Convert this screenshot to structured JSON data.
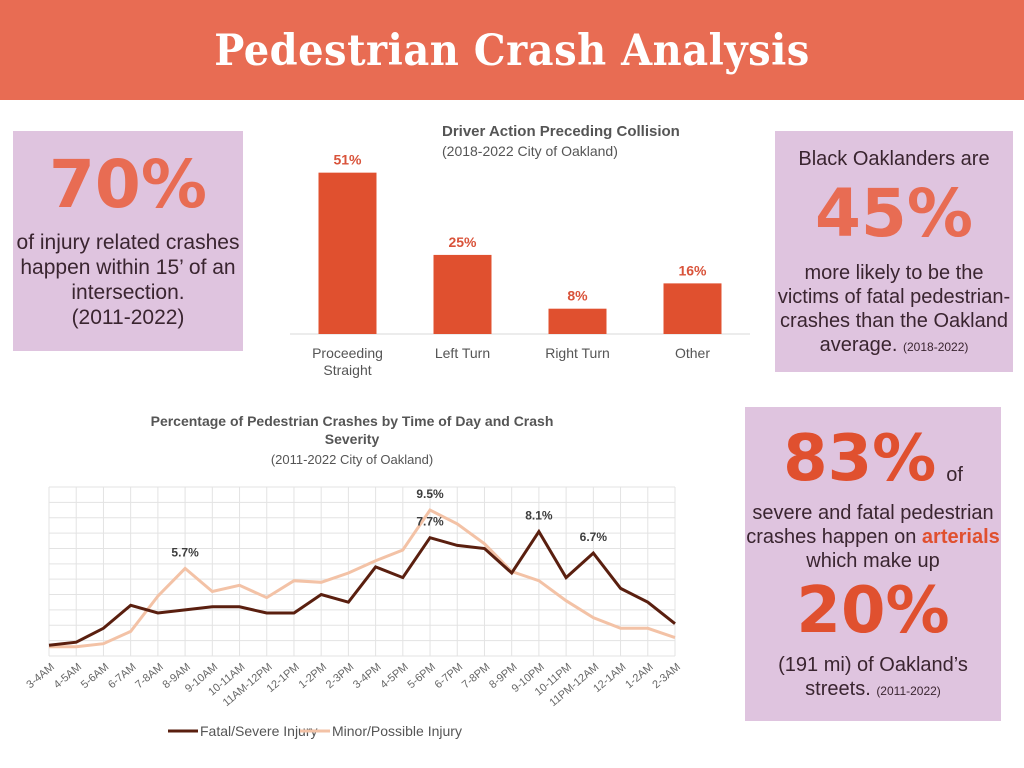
{
  "header": {
    "title": "Pedestrian Crash Analysis"
  },
  "colors": {
    "header_bg": "#e86c53",
    "card_bg": "#dfc4df",
    "accent_orange": "#e86c53",
    "bar_red": "#e0502f",
    "fatal_line": "#5a1f0f",
    "minor_line": "#f3c2a6"
  },
  "card_intersection": {
    "stat": "70%",
    "text": "of injury related crashes happen within 15’ of an intersection.",
    "years": "(2011-2022)"
  },
  "card_black_oaklanders": {
    "lead": "Black Oaklanders are",
    "stat": "45%",
    "text": "more likely to be the victims of fatal pedestrian-crashes than the Oakland average.",
    "years": "(2018-2022)"
  },
  "card_arterials": {
    "stat1": "83%",
    "of": "of",
    "text_pre": "severe and fatal pedestrian crashes happen on",
    "highlight": "arterials",
    "text_post": "which make up",
    "stat2": "20%",
    "tail": "(191 mi) of Oakland’s streets.",
    "years": "(2011-2022)"
  },
  "chart_data": [
    {
      "type": "bar",
      "title": "Driver Action Preceding Collision",
      "subtitle": "(2018-2022 City of Oakland)",
      "categories": [
        "Proceeding Straight",
        "Left Turn",
        "Right Turn",
        "Other"
      ],
      "category_lines": [
        [
          "Proceeding",
          "Straight"
        ],
        [
          "Left Turn"
        ],
        [
          "Right Turn"
        ],
        [
          "Other"
        ]
      ],
      "values": [
        51,
        25,
        8,
        16
      ],
      "data_labels": [
        "51%",
        "25%",
        "8%",
        "16%"
      ],
      "xlabel": "",
      "ylabel": "",
      "ylim": [
        0,
        55
      ],
      "grid": false,
      "legend": "none"
    },
    {
      "type": "line",
      "title": "Percentage of Pedestrian Crashes by Time of Day and Crash Severity",
      "title_lines": [
        "Percentage of Pedestrian Crashes by Time of Day and Crash",
        "Severity"
      ],
      "subtitle": "(2011-2022 City of Oakland)",
      "x": [
        "3-4AM",
        "4-5AM",
        "5-6AM",
        "6-7AM",
        "7-8AM",
        "8-9AM",
        "9-10AM",
        "10-11AM",
        "11AM-12PM",
        "12-1PM",
        "1-2PM",
        "2-3PM",
        "3-4PM",
        "4-5PM",
        "5-6PM",
        "6-7PM",
        "7-8PM",
        "8-9PM",
        "9-10PM",
        "10-11PM",
        "11PM-12AM",
        "12-1AM",
        "1-2AM",
        "2-3AM"
      ],
      "series": [
        {
          "name": "Fatal/Severe Injury",
          "color": "#5a1f0f",
          "values": [
            0.7,
            0.9,
            1.8,
            3.3,
            2.8,
            3.0,
            3.2,
            3.2,
            2.8,
            2.8,
            4.0,
            3.5,
            5.8,
            5.1,
            7.7,
            7.2,
            7.0,
            5.4,
            8.1,
            5.1,
            6.7,
            4.4,
            3.5,
            2.1
          ]
        },
        {
          "name": "Minor/Possible Injury",
          "color": "#f3c2a6",
          "values": [
            0.6,
            0.6,
            0.8,
            1.6,
            3.9,
            5.7,
            4.2,
            4.6,
            3.8,
            4.9,
            4.8,
            5.4,
            6.2,
            6.9,
            9.5,
            8.6,
            7.3,
            5.5,
            4.9,
            3.6,
            2.5,
            1.8,
            1.8,
            1.2
          ]
        }
      ],
      "annotations": [
        {
          "series": "Minor/Possible Injury",
          "x": "8-9AM",
          "label": "5.7%"
        },
        {
          "series": "Minor/Possible Injury",
          "x": "5-6PM",
          "label": "9.5%"
        },
        {
          "series": "Fatal/Severe Injury",
          "x": "5-6PM",
          "label": "7.7%"
        },
        {
          "series": "Fatal/Severe Injury",
          "x": "9-10PM",
          "label": "8.1%"
        },
        {
          "series": "Fatal/Severe Injury",
          "x": "11PM-12AM",
          "label": "6.7%"
        }
      ],
      "xlabel": "",
      "ylabel": "",
      "ylim": [
        0,
        11
      ],
      "grid": true,
      "legend": "bottom"
    }
  ]
}
